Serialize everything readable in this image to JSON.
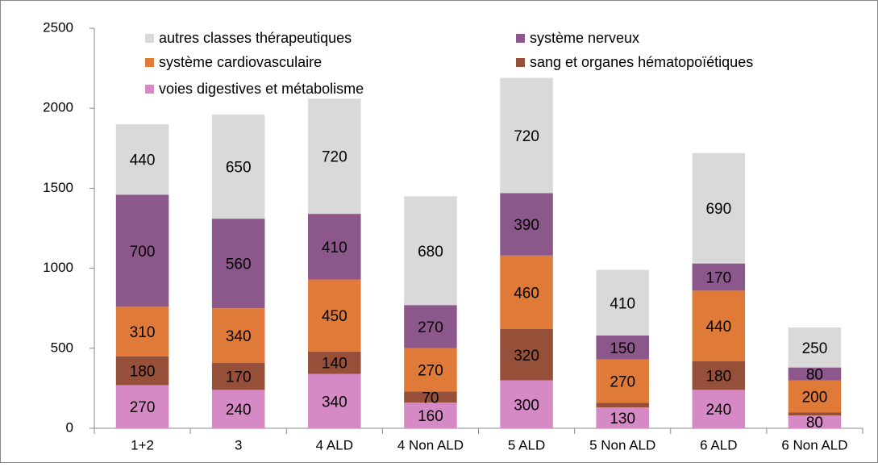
{
  "chart_data": {
    "type": "stacked_bar",
    "categories": [
      "1+2",
      "3",
      "4 ALD",
      "4 Non ALD",
      "5 ALD",
      "5 Non ALD",
      "6 ALD",
      "6 Non ALD"
    ],
    "series": [
      {
        "name": "voies digestives et métabolisme",
        "color": "#d68ac5",
        "values": [
          270,
          240,
          340,
          160,
          300,
          130,
          240,
          80
        ]
      },
      {
        "name": "sang et organes hématopoïétiques",
        "color": "#96503a",
        "values": [
          180,
          170,
          140,
          70,
          320,
          30,
          180,
          20
        ],
        "value_labels": [
          "180",
          "170",
          "140",
          "70",
          "320",
          null,
          "180",
          null
        ]
      },
      {
        "name": "système cardiovasculaire",
        "color": "#df7a38",
        "values": [
          310,
          340,
          450,
          270,
          460,
          270,
          440,
          200
        ]
      },
      {
        "name": "système nerveux",
        "color": "#8c588b",
        "values": [
          700,
          560,
          410,
          270,
          390,
          150,
          170,
          80
        ]
      },
      {
        "name": "autres classes thérapeutiques",
        "color": "#d9d9d9",
        "values": [
          440,
          650,
          720,
          680,
          720,
          410,
          690,
          250
        ]
      }
    ],
    "ylim": [
      0,
      2500
    ],
    "yticks": [
      0,
      500,
      1000,
      1500,
      2000,
      2500
    ]
  }
}
